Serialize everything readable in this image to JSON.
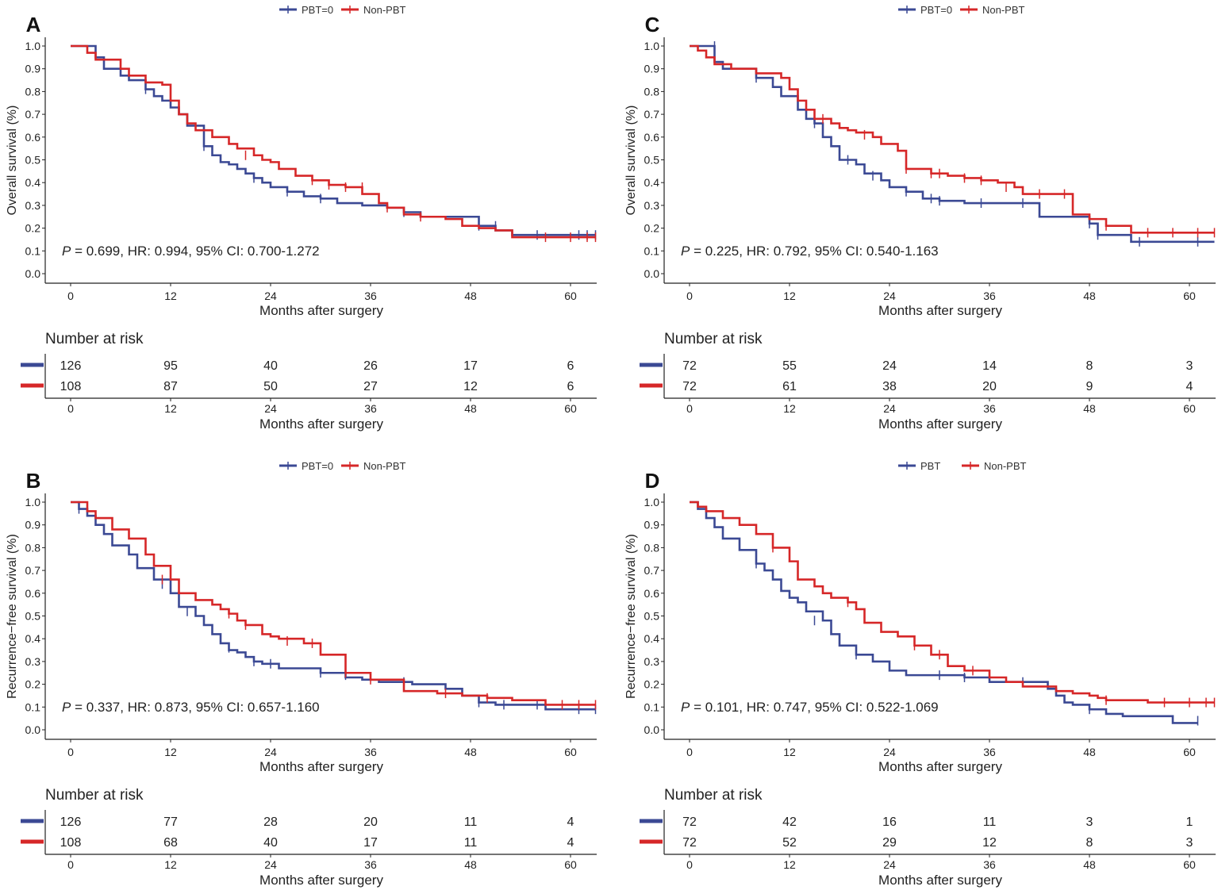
{
  "colors": {
    "pbt": "#3b4994",
    "nonpbt": "#d62728",
    "axis": "#222222"
  },
  "x_axis_label": "Months after surgery",
  "x_ticks": [
    0,
    12,
    24,
    36,
    48,
    60
  ],
  "y_ticks": [
    "0.0",
    "0.1",
    "0.2",
    "0.3",
    "0.4",
    "0.5",
    "0.6",
    "0.7",
    "0.8",
    "0.9",
    "1.0"
  ],
  "risk_title": "Number at risk",
  "chart_data": [
    {
      "panel": "A",
      "type": "line",
      "ylabel": "Overall survival (%)",
      "xlabel": "Months after surgery",
      "xlim": [
        -3,
        63
      ],
      "ylim": [
        -0.05,
        1.05
      ],
      "legend": [
        "PBT=0",
        "Non-PBT"
      ],
      "stats": "P = 0.699, HR: 0.994, 95% CI: 0.700-1.272",
      "stats_p_letter": "P",
      "stats_rest": " = 0.699, HR: 0.994, 95% CI: 0.700-1.272",
      "series": [
        {
          "name": "PBT=0",
          "x": [
            0,
            3,
            4,
            6,
            7,
            9,
            10,
            11,
            12,
            13,
            14,
            16,
            17,
            18,
            19,
            20,
            21,
            22,
            23,
            24,
            26,
            28,
            30,
            32,
            35,
            38,
            40,
            42,
            45,
            49,
            51,
            53,
            63
          ],
          "y": [
            1.0,
            0.95,
            0.9,
            0.87,
            0.85,
            0.81,
            0.78,
            0.76,
            0.73,
            0.7,
            0.65,
            0.56,
            0.52,
            0.49,
            0.48,
            0.46,
            0.44,
            0.42,
            0.4,
            0.38,
            0.36,
            0.34,
            0.33,
            0.31,
            0.3,
            0.29,
            0.27,
            0.25,
            0.25,
            0.21,
            0.19,
            0.17,
            0.17
          ],
          "censor": [
            [
              9,
              0.81
            ],
            [
              16,
              0.56
            ],
            [
              22,
              0.42
            ],
            [
              26,
              0.36
            ],
            [
              30,
              0.33
            ],
            [
              40,
              0.27
            ],
            [
              49,
              0.21
            ],
            [
              51,
              0.21
            ],
            [
              56,
              0.17
            ],
            [
              61,
              0.17
            ],
            [
              62,
              0.17
            ],
            [
              63,
              0.17
            ]
          ]
        },
        {
          "name": "Non-PBT",
          "x": [
            0,
            2,
            3,
            6,
            7,
            9,
            11,
            12,
            13,
            14,
            15,
            17,
            19,
            20,
            22,
            23,
            24,
            25,
            27,
            29,
            31,
            33,
            35,
            37,
            38,
            40,
            42,
            45,
            47,
            49,
            51,
            53,
            63
          ],
          "y": [
            1.0,
            0.97,
            0.94,
            0.9,
            0.87,
            0.84,
            0.83,
            0.76,
            0.7,
            0.66,
            0.63,
            0.6,
            0.57,
            0.55,
            0.52,
            0.5,
            0.49,
            0.46,
            0.43,
            0.41,
            0.39,
            0.38,
            0.35,
            0.31,
            0.29,
            0.26,
            0.25,
            0.24,
            0.21,
            0.2,
            0.19,
            0.16,
            0.16
          ],
          "censor": [
            [
              21,
              0.52
            ],
            [
              29,
              0.41
            ],
            [
              31,
              0.39
            ],
            [
              33,
              0.38
            ],
            [
              35,
              0.38
            ],
            [
              38,
              0.29
            ],
            [
              42,
              0.25
            ],
            [
              57,
              0.16
            ],
            [
              60,
              0.16
            ],
            [
              62,
              0.16
            ],
            [
              63,
              0.16
            ]
          ]
        }
      ],
      "at_risk": {
        "PBT=0": [
          126,
          95,
          40,
          26,
          17,
          6
        ],
        "Non-PBT": [
          108,
          87,
          50,
          27,
          12,
          6
        ]
      }
    },
    {
      "panel": "C",
      "type": "line",
      "ylabel": "Overall survival (%)",
      "xlabel": "Months after surgery",
      "xlim": [
        -3,
        63
      ],
      "ylim": [
        -0.05,
        1.05
      ],
      "legend": [
        "PBT=0",
        "Non-PBT"
      ],
      "stats": "P = 0.225, HR: 0.792, 95% CI: 0.540-1.163",
      "stats_p_letter": "P",
      "stats_rest": " = 0.225, HR: 0.792, 95% CI: 0.540-1.163",
      "series": [
        {
          "name": "PBT=0",
          "x": [
            0,
            3,
            4,
            8,
            10,
            11,
            13,
            14,
            15,
            16,
            17,
            18,
            20,
            21,
            23,
            24,
            26,
            28,
            30,
            33,
            35,
            40,
            42,
            48,
            49,
            53,
            63
          ],
          "y": [
            1.0,
            0.93,
            0.9,
            0.86,
            0.82,
            0.78,
            0.72,
            0.68,
            0.66,
            0.6,
            0.56,
            0.5,
            0.48,
            0.44,
            0.41,
            0.38,
            0.36,
            0.33,
            0.32,
            0.31,
            0.31,
            0.31,
            0.25,
            0.22,
            0.17,
            0.14,
            0.14
          ],
          "censor": [
            [
              3,
              1.0
            ],
            [
              8,
              0.86
            ],
            [
              15,
              0.66
            ],
            [
              19,
              0.5
            ],
            [
              22,
              0.43
            ],
            [
              26,
              0.36
            ],
            [
              29,
              0.33
            ],
            [
              30,
              0.32
            ],
            [
              35,
              0.31
            ],
            [
              40,
              0.31
            ],
            [
              48,
              0.22
            ],
            [
              49,
              0.17
            ],
            [
              54,
              0.14
            ],
            [
              61,
              0.14
            ]
          ]
        },
        {
          "name": "Non-PBT",
          "x": [
            0,
            1,
            2,
            3,
            5,
            8,
            11,
            12,
            13,
            14,
            15,
            16,
            17,
            18,
            19,
            20,
            22,
            23,
            25,
            26,
            29,
            31,
            33,
            35,
            37,
            39,
            40,
            42,
            44,
            46,
            48,
            50,
            53,
            63
          ],
          "y": [
            1.0,
            0.98,
            0.95,
            0.92,
            0.9,
            0.88,
            0.86,
            0.81,
            0.76,
            0.72,
            0.68,
            0.68,
            0.66,
            0.64,
            0.63,
            0.62,
            0.6,
            0.57,
            0.54,
            0.46,
            0.44,
            0.43,
            0.42,
            0.41,
            0.4,
            0.38,
            0.35,
            0.35,
            0.35,
            0.26,
            0.24,
            0.21,
            0.18,
            0.18
          ],
          "censor": [
            [
              16,
              0.68
            ],
            [
              21,
              0.61
            ],
            [
              26,
              0.46
            ],
            [
              29,
              0.44
            ],
            [
              30,
              0.44
            ],
            [
              33,
              0.42
            ],
            [
              35,
              0.41
            ],
            [
              38,
              0.38
            ],
            [
              42,
              0.35
            ],
            [
              45,
              0.35
            ],
            [
              50,
              0.21
            ],
            [
              55,
              0.18
            ],
            [
              58,
              0.18
            ],
            [
              61,
              0.18
            ],
            [
              63,
              0.18
            ]
          ]
        }
      ],
      "at_risk": {
        "PBT=0": [
          72,
          55,
          24,
          14,
          8,
          3
        ],
        "Non-PBT": [
          72,
          61,
          38,
          20,
          9,
          4
        ]
      }
    },
    {
      "panel": "B",
      "type": "line",
      "ylabel": "Recurrence−free survival (%)",
      "xlabel": "Months after surgery",
      "xlim": [
        -3,
        63
      ],
      "ylim": [
        -0.05,
        1.05
      ],
      "legend": [
        "PBT=0",
        "Non-PBT"
      ],
      "stats": "P = 0.337, HR: 0.873, 95% CI: 0.657-1.160",
      "stats_p_letter": "P",
      "stats_rest": " = 0.337, HR: 0.873, 95% CI: 0.657-1.160",
      "series": [
        {
          "name": "PBT=0",
          "x": [
            0,
            1,
            2,
            3,
            4,
            5,
            7,
            8,
            10,
            12,
            13,
            15,
            16,
            17,
            18,
            19,
            20,
            21,
            22,
            23,
            25,
            28,
            30,
            33,
            35,
            37,
            39,
            41,
            45,
            47,
            49,
            51,
            53,
            57,
            63
          ],
          "y": [
            1.0,
            0.97,
            0.94,
            0.9,
            0.86,
            0.81,
            0.77,
            0.71,
            0.66,
            0.6,
            0.54,
            0.5,
            0.46,
            0.42,
            0.38,
            0.35,
            0.34,
            0.32,
            0.3,
            0.29,
            0.27,
            0.27,
            0.25,
            0.23,
            0.22,
            0.21,
            0.21,
            0.2,
            0.18,
            0.15,
            0.12,
            0.11,
            0.11,
            0.09,
            0.09
          ],
          "censor": [
            [
              1,
              0.97
            ],
            [
              11,
              0.64
            ],
            [
              14,
              0.52
            ],
            [
              19,
              0.36
            ],
            [
              22,
              0.3
            ],
            [
              24,
              0.29
            ],
            [
              30,
              0.25
            ],
            [
              33,
              0.24
            ],
            [
              40,
              0.21
            ],
            [
              49,
              0.12
            ],
            [
              52,
              0.11
            ],
            [
              56,
              0.11
            ],
            [
              61,
              0.09
            ],
            [
              63,
              0.09
            ]
          ]
        },
        {
          "name": "Non-PBT",
          "x": [
            0,
            2,
            3,
            5,
            7,
            9,
            10,
            12,
            13,
            15,
            17,
            18,
            19,
            20,
            21,
            23,
            24,
            25,
            28,
            30,
            33,
            36,
            40,
            44,
            47,
            50,
            53,
            57,
            63
          ],
          "y": [
            1.0,
            0.96,
            0.93,
            0.88,
            0.84,
            0.77,
            0.72,
            0.66,
            0.6,
            0.57,
            0.55,
            0.53,
            0.51,
            0.48,
            0.46,
            0.42,
            0.41,
            0.4,
            0.38,
            0.33,
            0.25,
            0.22,
            0.17,
            0.16,
            0.15,
            0.14,
            0.13,
            0.11,
            0.11
          ],
          "censor": [
            [
              11,
              0.66
            ],
            [
              19,
              0.51
            ],
            [
              21,
              0.46
            ],
            [
              26,
              0.39
            ],
            [
              29,
              0.38
            ],
            [
              33,
              0.25
            ],
            [
              36,
              0.22
            ],
            [
              45,
              0.16
            ],
            [
              50,
              0.14
            ],
            [
              59,
              0.11
            ],
            [
              61,
              0.11
            ],
            [
              63,
              0.11
            ]
          ]
        }
      ],
      "at_risk": {
        "PBT=0": [
          126,
          77,
          28,
          20,
          11,
          4
        ],
        "Non-PBT": [
          108,
          68,
          40,
          17,
          11,
          4
        ]
      }
    },
    {
      "panel": "D",
      "type": "line",
      "ylabel": "Recurrence−free survival (%)",
      "xlabel": "Months after surgery",
      "xlim": [
        -3,
        63
      ],
      "ylim": [
        -0.05,
        1.05
      ],
      "legend": [
        "PBT",
        "Non-PBT"
      ],
      "stats": "P = 0.101, HR: 0.747, 95% CI: 0.522-1.069",
      "stats_p_letter": "P",
      "stats_rest": " = 0.101, HR: 0.747, 95% CI: 0.522-1.069",
      "series": [
        {
          "name": "PBT",
          "x": [
            0,
            1,
            2,
            3,
            4,
            6,
            8,
            9,
            10,
            11,
            12,
            13,
            14,
            16,
            17,
            18,
            20,
            22,
            24,
            26,
            30,
            33,
            36,
            40,
            43,
            44,
            45,
            46,
            48,
            50,
            52,
            56,
            58,
            61
          ],
          "y": [
            1.0,
            0.97,
            0.93,
            0.89,
            0.84,
            0.79,
            0.73,
            0.7,
            0.66,
            0.61,
            0.58,
            0.56,
            0.52,
            0.48,
            0.42,
            0.37,
            0.33,
            0.3,
            0.26,
            0.24,
            0.24,
            0.23,
            0.21,
            0.21,
            0.18,
            0.15,
            0.12,
            0.11,
            0.09,
            0.07,
            0.06,
            0.06,
            0.03,
            0.03
          ],
          "censor": [
            [
              8,
              0.73
            ],
            [
              15,
              0.48
            ],
            [
              20,
              0.33
            ],
            [
              30,
              0.24
            ],
            [
              33,
              0.23
            ],
            [
              40,
              0.21
            ],
            [
              48,
              0.09
            ],
            [
              61,
              0.04
            ]
          ]
        },
        {
          "name": "Non-PBT",
          "x": [
            0,
            1,
            2,
            4,
            6,
            8,
            10,
            12,
            13,
            15,
            16,
            17,
            19,
            20,
            21,
            23,
            25,
            27,
            29,
            31,
            33,
            36,
            38,
            40,
            44,
            46,
            48,
            49,
            50,
            55,
            63
          ],
          "y": [
            1.0,
            0.98,
            0.96,
            0.93,
            0.9,
            0.86,
            0.8,
            0.74,
            0.66,
            0.63,
            0.6,
            0.58,
            0.56,
            0.53,
            0.47,
            0.43,
            0.41,
            0.37,
            0.33,
            0.28,
            0.26,
            0.23,
            0.21,
            0.19,
            0.17,
            0.16,
            0.15,
            0.14,
            0.13,
            0.12,
            0.12
          ],
          "censor": [
            [
              10,
              0.8
            ],
            [
              19,
              0.56
            ],
            [
              27,
              0.37
            ],
            [
              30,
              0.33
            ],
            [
              34,
              0.26
            ],
            [
              50,
              0.13
            ],
            [
              57,
              0.12
            ],
            [
              60,
              0.12
            ],
            [
              62,
              0.12
            ],
            [
              63,
              0.12
            ]
          ]
        }
      ],
      "at_risk": {
        "PBT": [
          72,
          42,
          16,
          11,
          3,
          1
        ],
        "Non-PBT": [
          72,
          52,
          29,
          12,
          8,
          3
        ]
      }
    }
  ]
}
